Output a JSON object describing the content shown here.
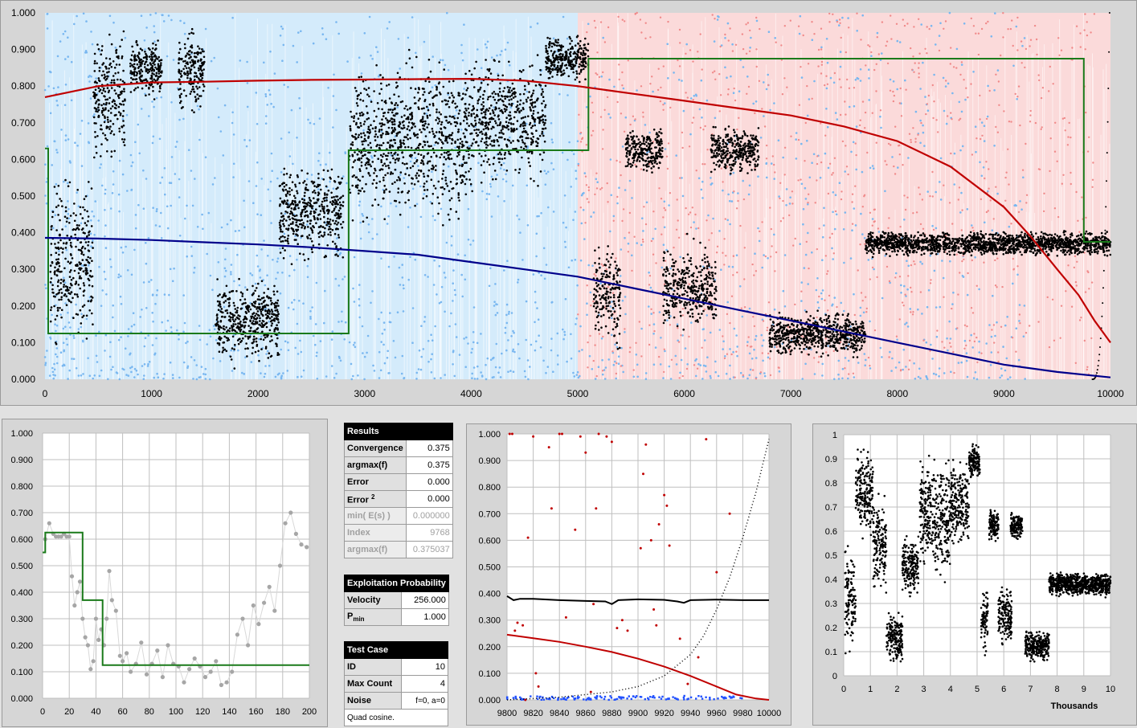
{
  "main_chart": {
    "chart_data": {
      "type": "scatter",
      "xlim": [
        0,
        10000
      ],
      "ylim": [
        0,
        1
      ],
      "x_ticks": [
        "0",
        "1000",
        "2000",
        "3000",
        "4000",
        "5000",
        "6000",
        "7000",
        "8000",
        "9000",
        "10000"
      ],
      "y_ticks": [
        "0.000",
        "0.100",
        "0.200",
        "0.300",
        "0.400",
        "0.500",
        "0.600",
        "0.700",
        "0.800",
        "0.900",
        "1.000"
      ],
      "background_bands": {
        "blue_until_x": 5000,
        "pink_from_x": 5000
      },
      "series": [
        {
          "role": "red-curve",
          "color": "#c00000",
          "x": [
            0,
            500,
            1000,
            1500,
            2000,
            2500,
            3000,
            3500,
            4000,
            4500,
            5000,
            5500,
            6000,
            6500,
            7000,
            7500,
            8000,
            8500,
            9000,
            9250,
            9500,
            9700,
            9850,
            10000
          ],
          "y": [
            0.77,
            0.8,
            0.81,
            0.812,
            0.815,
            0.817,
            0.818,
            0.819,
            0.82,
            0.815,
            0.8,
            0.78,
            0.76,
            0.74,
            0.72,
            0.69,
            0.65,
            0.58,
            0.47,
            0.39,
            0.3,
            0.23,
            0.16,
            0.1
          ]
        },
        {
          "role": "blue-curve",
          "color": "#00008b",
          "x": [
            0,
            500,
            1000,
            1500,
            2000,
            2500,
            3000,
            3500,
            4000,
            4500,
            5000,
            5500,
            6000,
            6500,
            7000,
            7500,
            8000,
            8500,
            9000,
            9500,
            10000
          ],
          "y": [
            0.386,
            0.384,
            0.38,
            0.374,
            0.368,
            0.36,
            0.35,
            0.34,
            0.32,
            0.3,
            0.28,
            0.25,
            0.22,
            0.19,
            0.16,
            0.13,
            0.1,
            0.07,
            0.04,
            0.02,
            0.005
          ]
        },
        {
          "role": "green-step",
          "color": "#1a7a1a",
          "x": [
            0,
            30,
            30,
            2850,
            2850,
            5100,
            5100,
            9750,
            9750,
            10000
          ],
          "y": [
            0.63,
            0.63,
            0.125,
            0.125,
            0.625,
            0.625,
            0.875,
            0.875,
            0.375,
            0.375
          ]
        },
        {
          "role": "black-points",
          "color": "#000000",
          "clusters": [
            {
              "x": [
                50,
                450
              ],
              "y": [
                0.05,
                0.6
              ]
            },
            {
              "x": [
                450,
                750
              ],
              "y": [
                0.55,
                0.98
              ]
            },
            {
              "x": [
                800,
                1100
              ],
              "y": [
                0.75,
                0.95
              ]
            },
            {
              "x": [
                1250,
                1500
              ],
              "y": [
                0.7,
                0.98
              ]
            },
            {
              "x": [
                1600,
                2200
              ],
              "y": [
                0.02,
                0.3
              ]
            },
            {
              "x": [
                2200,
                2800
              ],
              "y": [
                0.3,
                0.6
              ]
            },
            {
              "x": [
                2850,
                3400
              ],
              "y": [
                0.4,
                0.9
              ]
            },
            {
              "x": [
                3400,
                4000
              ],
              "y": [
                0.35,
                0.95
              ]
            },
            {
              "x": [
                4000,
                4700
              ],
              "y": [
                0.5,
                0.92
              ]
            },
            {
              "x": [
                4700,
                5100
              ],
              "y": [
                0.8,
                0.95
              ]
            },
            {
              "x": [
                5150,
                5400
              ],
              "y": [
                0.07,
                0.4
              ]
            },
            {
              "x": [
                5450,
                5800
              ],
              "y": [
                0.55,
                0.7
              ]
            },
            {
              "x": [
                5800,
                6300
              ],
              "y": [
                0.1,
                0.4
              ]
            },
            {
              "x": [
                6250,
                6700
              ],
              "y": [
                0.55,
                0.7
              ]
            },
            {
              "x": [
                6800,
                7700
              ],
              "y": [
                0.05,
                0.2
              ]
            },
            {
              "x": [
                7700,
                10000
              ],
              "y": [
                0.33,
                0.41
              ]
            }
          ]
        },
        {
          "role": "blue-points",
          "color": "#79b7f0"
        },
        {
          "role": "pink-points",
          "color": "#f08a8a"
        }
      ]
    }
  },
  "left_chart": {
    "chart_data": {
      "type": "scatter",
      "xlim": [
        0,
        200
      ],
      "ylim": [
        0,
        1
      ],
      "x_ticks": [
        "0",
        "20",
        "40",
        "60",
        "80",
        "100",
        "120",
        "140",
        "160",
        "180",
        "200"
      ],
      "y_ticks": [
        "0.000",
        "0.100",
        "0.200",
        "0.300",
        "0.400",
        "0.500",
        "0.600",
        "0.700",
        "0.800",
        "0.900",
        "1.000"
      ],
      "series": [
        {
          "role": "green-step",
          "color": "#1a7a1a",
          "x": [
            0,
            2,
            2,
            30,
            30,
            45,
            45,
            200
          ],
          "y": [
            0.55,
            0.55,
            0.625,
            0.625,
            0.37,
            0.37,
            0.125,
            0.125
          ]
        },
        {
          "role": "gray-points",
          "color": "#a6a6a6",
          "x": [
            2,
            5,
            8,
            10,
            12,
            14,
            16,
            18,
            20,
            22,
            24,
            26,
            28,
            30,
            32,
            34,
            36,
            38,
            40,
            42,
            44,
            46,
            48,
            50,
            52,
            55,
            58,
            60,
            63,
            66,
            70,
            74,
            78,
            82,
            86,
            90,
            94,
            98,
            102,
            106,
            110,
            114,
            118,
            122,
            126,
            130,
            134,
            138,
            142,
            146,
            150,
            154,
            158,
            162,
            166,
            170,
            174,
            178,
            182,
            186,
            190,
            194,
            198
          ],
          "y": [
            0.6,
            0.66,
            0.62,
            0.61,
            0.61,
            0.61,
            0.62,
            0.61,
            0.61,
            0.46,
            0.35,
            0.4,
            0.44,
            0.3,
            0.23,
            0.2,
            0.11,
            0.14,
            0.3,
            0.22,
            0.26,
            0.2,
            0.3,
            0.48,
            0.37,
            0.33,
            0.16,
            0.14,
            0.17,
            0.1,
            0.13,
            0.21,
            0.09,
            0.13,
            0.18,
            0.08,
            0.2,
            0.13,
            0.12,
            0.06,
            0.11,
            0.15,
            0.12,
            0.08,
            0.1,
            0.14,
            0.05,
            0.06,
            0.1,
            0.24,
            0.3,
            0.2,
            0.35,
            0.28,
            0.36,
            0.42,
            0.33,
            0.5,
            0.66,
            0.7,
            0.62,
            0.58,
            0.57
          ]
        }
      ]
    }
  },
  "results": {
    "title": "Results",
    "rows": [
      {
        "label": "Convergence",
        "value": "0.375"
      },
      {
        "label": "argmax(f)",
        "value": "0.375"
      },
      {
        "label": "Error",
        "value": "0.000"
      },
      {
        "label_main": "Error ",
        "label_sup": "2",
        "value": "0.000"
      },
      {
        "label": "min( E(s) )",
        "value": "0.000000"
      },
      {
        "label": "Index",
        "value": "9768"
      },
      {
        "label": "argmax(f)",
        "value": "0.375037"
      }
    ]
  },
  "exploitation": {
    "title": "Exploitation Probability",
    "velocity_label": "Velocity",
    "velocity_value": "256.000",
    "pmin_main": "P",
    "pmin_sub": "min",
    "pmin_value": "1.000"
  },
  "test_case": {
    "title": "Test Case",
    "rows": [
      {
        "label": "ID",
        "value": "10"
      },
      {
        "label": "Max Count",
        "value": "4"
      },
      {
        "label": "Noise",
        "value": "f=0, a=0"
      }
    ],
    "note": "Quad cosine."
  },
  "mid_chart": {
    "chart_data": {
      "type": "scatter",
      "xlim": [
        9800,
        10000
      ],
      "ylim": [
        0,
        1
      ],
      "x_ticks": [
        "9800",
        "9820",
        "9840",
        "9860",
        "9880",
        "9900",
        "9920",
        "9940",
        "9960",
        "9980",
        "10000"
      ],
      "y_ticks": [
        "0.000",
        "0.100",
        "0.200",
        "0.300",
        "0.400",
        "0.500",
        "0.600",
        "0.700",
        "0.800",
        "0.900",
        "1.000"
      ],
      "series": [
        {
          "role": "black-line",
          "color": "#000000",
          "x": [
            9800,
            9805,
            9810,
            9820,
            9840,
            9860,
            9875,
            9880,
            9885,
            9900,
            9920,
            9930,
            9935,
            9940,
            9960,
            9980,
            10000
          ],
          "y": [
            0.39,
            0.375,
            0.38,
            0.38,
            0.375,
            0.372,
            0.37,
            0.36,
            0.375,
            0.378,
            0.376,
            0.37,
            0.365,
            0.375,
            0.377,
            0.375,
            0.375
          ]
        },
        {
          "role": "red-curve",
          "color": "#c00000",
          "x": [
            9800,
            9820,
            9840,
            9860,
            9880,
            9900,
            9920,
            9940,
            9960,
            9975,
            9990,
            10000
          ],
          "y": [
            0.245,
            0.232,
            0.218,
            0.2,
            0.18,
            0.155,
            0.125,
            0.09,
            0.05,
            0.02,
            0.005,
            0.0
          ]
        },
        {
          "role": "black-dotted",
          "color": "#000000",
          "x": [
            9800,
            9840,
            9880,
            9900,
            9920,
            9940,
            9950,
            9960,
            9970,
            9980,
            9990,
            10000
          ],
          "y": [
            0.0,
            0.01,
            0.03,
            0.05,
            0.09,
            0.17,
            0.24,
            0.34,
            0.46,
            0.61,
            0.78,
            0.98
          ]
        },
        {
          "role": "red-points",
          "color": "#c00000",
          "x": [
            9802,
            9804,
            9806,
            9808,
            9812,
            9814,
            9816,
            9820,
            9822,
            9824,
            9832,
            9834,
            9840,
            9842,
            9845,
            9852,
            9856,
            9860,
            9864,
            9866,
            9868,
            9870,
            9876,
            9880,
            9884,
            9888,
            9892,
            9902,
            9904,
            9906,
            9910,
            9912,
            9914,
            9916,
            9920,
            9922,
            9924,
            9932,
            9938,
            9946,
            9952,
            9960,
            9970
          ],
          "y": [
            1.0,
            1.0,
            0.26,
            0.29,
            0.28,
            0.0,
            0.61,
            0.99,
            0.1,
            0.05,
            0.95,
            0.72,
            1.0,
            1.0,
            0.31,
            0.64,
            0.99,
            0.93,
            0.03,
            0.36,
            0.72,
            1.0,
            0.99,
            0.97,
            0.27,
            0.3,
            0.26,
            0.57,
            0.85,
            0.96,
            0.6,
            0.34,
            0.28,
            0.66,
            0.77,
            0.73,
            0.58,
            0.23,
            0.06,
            0.16,
            0.98,
            0.48,
            0.7
          ]
        },
        {
          "role": "blue-points",
          "color": "#2050ff"
        }
      ]
    }
  },
  "right_chart": {
    "chart_data": {
      "type": "scatter",
      "xlim": [
        0,
        10
      ],
      "ylim": [
        0,
        1
      ],
      "x_ticks": [
        "0",
        "1",
        "2",
        "3",
        "4",
        "5",
        "6",
        "7",
        "8",
        "9",
        "10"
      ],
      "y_ticks": [
        "0",
        "0.1",
        "0.2",
        "0.3",
        "0.4",
        "0.5",
        "0.6",
        "0.7",
        "0.8",
        "0.9",
        "1"
      ],
      "xlabel": "Thousands",
      "series": [
        {
          "role": "black-points",
          "color": "#000000",
          "clusters": [
            {
              "x": [
                0.05,
                0.45
              ],
              "y": [
                0.05,
                0.6
              ]
            },
            {
              "x": [
                0.45,
                1.1
              ],
              "y": [
                0.55,
                0.98
              ]
            },
            {
              "x": [
                1.1,
                1.6
              ],
              "y": [
                0.3,
                0.8
              ]
            },
            {
              "x": [
                1.6,
                2.2
              ],
              "y": [
                0.02,
                0.3
              ]
            },
            {
              "x": [
                2.2,
                2.8
              ],
              "y": [
                0.3,
                0.6
              ]
            },
            {
              "x": [
                2.85,
                3.4
              ],
              "y": [
                0.4,
                0.95
              ]
            },
            {
              "x": [
                3.4,
                4.0
              ],
              "y": [
                0.35,
                0.95
              ]
            },
            {
              "x": [
                4.0,
                4.7
              ],
              "y": [
                0.5,
                0.92
              ]
            },
            {
              "x": [
                4.7,
                5.1
              ],
              "y": [
                0.8,
                0.98
              ]
            },
            {
              "x": [
                5.15,
                5.4
              ],
              "y": [
                0.07,
                0.4
              ]
            },
            {
              "x": [
                5.45,
                5.8
              ],
              "y": [
                0.55,
                0.7
              ]
            },
            {
              "x": [
                5.8,
                6.3
              ],
              "y": [
                0.1,
                0.4
              ]
            },
            {
              "x": [
                6.25,
                6.7
              ],
              "y": [
                0.55,
                0.7
              ]
            },
            {
              "x": [
                6.8,
                7.7
              ],
              "y": [
                0.05,
                0.2
              ]
            },
            {
              "x": [
                7.7,
                10.0
              ],
              "y": [
                0.32,
                0.44
              ]
            }
          ]
        }
      ]
    }
  }
}
